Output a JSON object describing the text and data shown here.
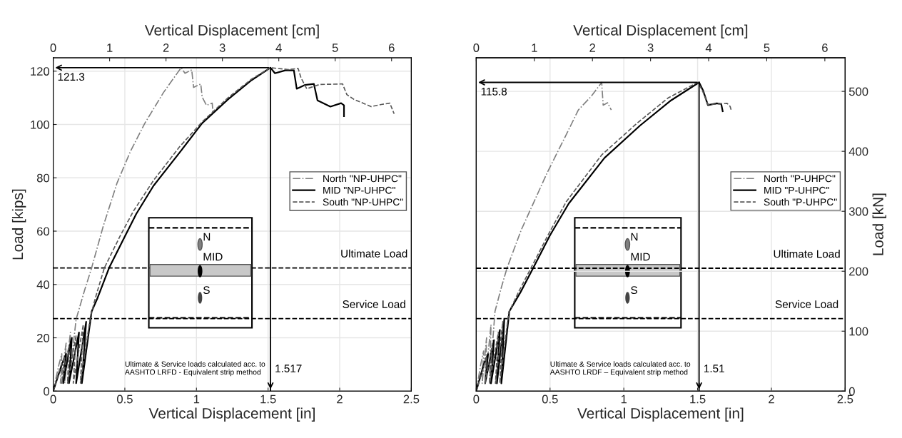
{
  "chart_data": [
    {
      "type": "line",
      "xlabel": "Vertical Displacement [in]",
      "x2label": "Vertical Displacement [cm]",
      "ylabel": "Load [kips]",
      "xlim": [
        0,
        2.5
      ],
      "xticks": [
        0,
        0.5,
        1,
        1.5,
        2,
        2.5
      ],
      "x2lim": [
        0,
        6.35
      ],
      "x2ticks": [
        0,
        1,
        2,
        3,
        4,
        5,
        6
      ],
      "ylim": [
        0,
        125
      ],
      "yticks": [
        0,
        20,
        40,
        60,
        80,
        100,
        120
      ],
      "grid": true,
      "legend": "right",
      "series": [
        {
          "name": "North \"NP-UHPC\"",
          "color": "#808080",
          "line_style": "dashdot",
          "x": [
            0,
            0.04,
            0.06,
            0.05,
            0.09,
            0.08,
            0.12,
            0.11,
            0.16,
            0.22,
            0.268,
            0.35,
            0.446,
            0.54,
            0.64,
            0.77,
            0.893,
            0.92,
            0.967,
            0.98,
            1.03,
            1.04,
            1.07,
            1.11,
            1.116
          ],
          "values": [
            0,
            10,
            14,
            3,
            18,
            3,
            22,
            3,
            27,
            38,
            46.2,
            62,
            78.1,
            90,
            100.5,
            112,
            121.3,
            119.2,
            120.5,
            113.9,
            115.2,
            110.3,
            107.2,
            108,
            104
          ]
        },
        {
          "name": "MID \"NP-UHPC\"",
          "color": "#000000",
          "line_style": "solid",
          "x": [
            0,
            0.06,
            0.09,
            0.07,
            0.12,
            0.13,
            0.11,
            0.18,
            0.16,
            0.23,
            0.2,
            0.268,
            0.31,
            0.39,
            0.5,
            0.58,
            0.7,
            0.893,
            1.04,
            1.22,
            1.384,
            1.517,
            1.548,
            1.62,
            1.68,
            1.7,
            1.756,
            1.82,
            1.845,
            1.935,
            2.01,
            2.03,
            2.03
          ],
          "values": [
            0,
            10,
            14,
            3,
            18,
            20,
            3,
            22,
            3,
            26,
            3,
            29.8,
            35,
            46.2,
            58,
            66.5,
            77,
            90.2,
            100.5,
            109.4,
            116.6,
            121.3,
            119.2,
            120.3,
            120.3,
            113.4,
            114.8,
            115.2,
            109,
            106.7,
            108,
            107.2,
            103.1
          ]
        },
        {
          "name": "South \"NP-UHPC\"",
          "color": "#595959",
          "line_style": "dashed",
          "x": [
            0,
            0.05,
            0.08,
            0.06,
            0.11,
            0.1,
            0.16,
            0.14,
            0.21,
            0.19,
            0.26,
            0.3,
            0.357,
            0.47,
            0.56,
            0.7,
            0.88,
            1.04,
            1.22,
            1.384,
            1.517,
            1.64,
            1.71,
            1.73,
            1.77,
            1.86,
            2.02,
            2.05,
            2.1,
            2.22,
            2.29,
            2.35,
            2.38
          ],
          "values": [
            0,
            9,
            13,
            3,
            17,
            3,
            21,
            3,
            25,
            3,
            28,
            36,
            46.2,
            58.5,
            67.5,
            79,
            91.5,
            101,
            110,
            117,
            121.3,
            120.6,
            121,
            117.5,
            113.4,
            115,
            115.2,
            111.2,
            109.4,
            106.7,
            107.5,
            108,
            104
          ]
        }
      ],
      "ref_lines": [
        {
          "axis": "y",
          "value": 46.2,
          "label": "Ultimate Load",
          "color": "#000000",
          "line_style": "dashed"
        },
        {
          "axis": "y",
          "value": 27.2,
          "label": "Service Load",
          "color": "#000000",
          "line_style": "dashed"
        },
        {
          "axis": "x",
          "value": 1.517,
          "label": "1.517",
          "color": "#000000",
          "line_style": "solid"
        }
      ],
      "annotations": [
        "121.3",
        "Ultimate & Service loads calculated acc. to\nAASHTO LRFD - Equivalent strip method",
        "N",
        "MID",
        "S"
      ]
    },
    {
      "type": "line",
      "xlabel": "Vertical Displacement [in]",
      "x2label": "Vertical Displacement [cm]",
      "y2label": "Load [kN]",
      "xlim": [
        0,
        2.5
      ],
      "xticks": [
        0,
        0.5,
        1,
        1.5,
        2,
        2.5
      ],
      "x2lim": [
        0,
        6.35
      ],
      "x2ticks": [
        0,
        1,
        2,
        3,
        4,
        5,
        6
      ],
      "y2lim": [
        0,
        556
      ],
      "y2ticks": [
        0,
        100,
        200,
        300,
        400,
        500
      ],
      "grid": true,
      "legend": "right",
      "series": [
        {
          "name": "North \"P-UHPC\"",
          "color": "#808080",
          "line_style": "dashdot",
          "axis": "y2",
          "x": [
            0,
            0.03,
            0.05,
            0.04,
            0.07,
            0.06,
            0.1,
            0.09,
            0.127,
            0.17,
            0.208,
            0.305,
            0.482,
            0.6,
            0.692,
            0.78,
            0.85,
            0.86,
            0.89,
            0.915
          ],
          "values": [
            0,
            44,
            67,
            13,
            89,
            13,
            111,
            13,
            133,
            173,
            205,
            269,
            365,
            423,
            469,
            492,
            515,
            477,
            481,
            469
          ]
        },
        {
          "name": "MID \"P-UHPC\"",
          "color": "#000000",
          "line_style": "solid",
          "axis": "y2",
          "x": [
            0,
            0.05,
            0.08,
            0.06,
            0.12,
            0.1,
            0.16,
            0.14,
            0.19,
            0.17,
            0.224,
            0.3,
            0.385,
            0.5,
            0.627,
            0.869,
            1.11,
            1.32,
            1.51,
            1.538,
            1.57,
            1.63,
            1.66,
            1.67
          ],
          "values": [
            0,
            44,
            62,
            13,
            85,
            13,
            102,
            13,
            120,
            13,
            133,
            165,
            205,
            260,
            313,
            389,
            443,
            485,
            515,
            501,
            477,
            480,
            479,
            467
          ]
        },
        {
          "name": "South \"P-UHPC\"",
          "color": "#595959",
          "line_style": "dashed",
          "axis": "y2",
          "x": [
            0,
            0.05,
            0.07,
            0.06,
            0.11,
            0.09,
            0.15,
            0.13,
            0.18,
            0.16,
            0.22,
            0.29,
            0.37,
            0.49,
            0.61,
            0.85,
            1.09,
            1.3,
            1.5,
            1.53,
            1.57,
            1.63,
            1.7,
            1.72,
            1.73
          ],
          "values": [
            0,
            40,
            58,
            13,
            80,
            13,
            98,
            13,
            116,
            13,
            131,
            167,
            205,
            262,
            316,
            394,
            447,
            489,
            515,
            503,
            478,
            479,
            480,
            475,
            467
          ]
        }
      ],
      "ref_lines": [
        {
          "axis": "y2",
          "value": 205,
          "label": "Ultimate Load",
          "color": "#000000",
          "line_style": "dashed"
        },
        {
          "axis": "y2",
          "value": 121,
          "label": "Service Load",
          "color": "#000000",
          "line_style": "dashed"
        },
        {
          "axis": "x",
          "value": 1.51,
          "label": "1.51",
          "color": "#000000",
          "line_style": "solid"
        }
      ],
      "annotations": [
        "115.8",
        "Ultimate & Service loads calculated acc. to\nAASHTO LRDF – Equivalent strip method",
        "N",
        "MID",
        "S"
      ]
    }
  ]
}
